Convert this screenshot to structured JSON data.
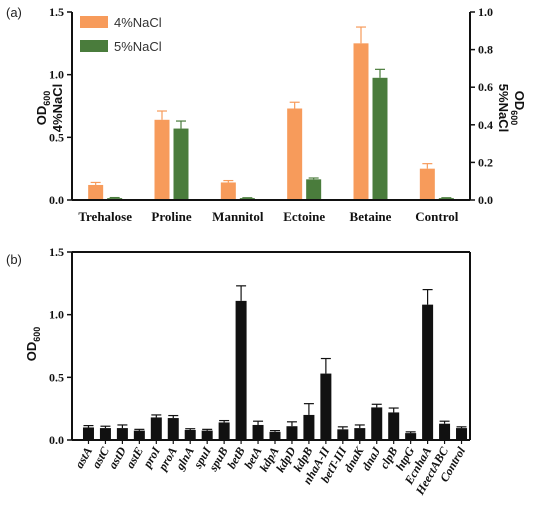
{
  "chart_data": [
    {
      "panel": "(a)",
      "type": "bar",
      "categories": [
        "Trehalose",
        "Proline",
        "Mannitol",
        "Ectoine",
        "Betaine",
        "Control"
      ],
      "series": [
        {
          "name": "4%NaCl",
          "axis": "left",
          "color": "#F79B5B",
          "values": [
            0.12,
            0.64,
            0.14,
            0.73,
            1.25,
            0.25
          ],
          "errors": [
            0.02,
            0.07,
            0.015,
            0.05,
            0.13,
            0.04
          ]
        },
        {
          "name": "5%NaCl",
          "axis": "right",
          "color": "#4A7C3C",
          "values": [
            0.01,
            0.38,
            0.01,
            0.11,
            0.65,
            0.01
          ],
          "errors": [
            0.003,
            0.04,
            0.002,
            0.007,
            0.045,
            0.002
          ]
        }
      ],
      "ylim_left": [
        0,
        1.5
      ],
      "yticks_left": [
        "0.0",
        "0.5",
        "1.0",
        "1.5"
      ],
      "ylim_right": [
        0,
        1.0
      ],
      "yticks_right": [
        "0.0",
        "0.2",
        "0.4",
        "0.6",
        "0.8",
        "1.0"
      ],
      "ylabel_left_line1": "OD",
      "ylabel_left_sub": "600",
      "ylabel_left_line2": "4%NaCl",
      "ylabel_right_line1": "OD",
      "ylabel_right_sub": "600",
      "ylabel_right_line2": "5%NaCl",
      "legend": "top-left"
    },
    {
      "panel": "(b)",
      "type": "bar",
      "categories": [
        "astA",
        "astC",
        "astD",
        "astE",
        "proI",
        "proA",
        "glnA",
        "spuI",
        "spuB",
        "betB",
        "betA",
        "kdpA",
        "kdpD",
        "kdpB",
        "nhaA-II",
        "betT-III",
        "dnaK",
        "dnaJ",
        "clpB",
        "htpG",
        "EcnhaA",
        "HeectABC",
        "Control"
      ],
      "category_styles": [
        "italic",
        "italic",
        "italic",
        "italic",
        "italic",
        "italic",
        "italic",
        "italic",
        "italic",
        "italic",
        "italic",
        "italic",
        "italic",
        "italic",
        "italic",
        "italic",
        "italic",
        "italic",
        "italic",
        "italic",
        "italic",
        "italic",
        "normal"
      ],
      "series": [
        {
          "color": "#111111",
          "values": [
            0.1,
            0.095,
            0.095,
            0.075,
            0.18,
            0.175,
            0.08,
            0.075,
            0.14,
            1.11,
            0.12,
            0.065,
            0.11,
            0.2,
            0.53,
            0.085,
            0.095,
            0.26,
            0.22,
            0.055,
            1.08,
            0.13,
            0.095
          ],
          "errors": [
            0.015,
            0.015,
            0.025,
            0.01,
            0.02,
            0.02,
            0.01,
            0.01,
            0.015,
            0.12,
            0.03,
            0.01,
            0.035,
            0.09,
            0.12,
            0.02,
            0.025,
            0.025,
            0.035,
            0.01,
            0.12,
            0.02,
            0.01
          ]
        }
      ],
      "ylim": [
        0,
        1.5
      ],
      "yticks": [
        "0.0",
        "0.5",
        "1.0",
        "1.5"
      ],
      "ylabel": "OD",
      "ylabel_sub": "600"
    }
  ]
}
